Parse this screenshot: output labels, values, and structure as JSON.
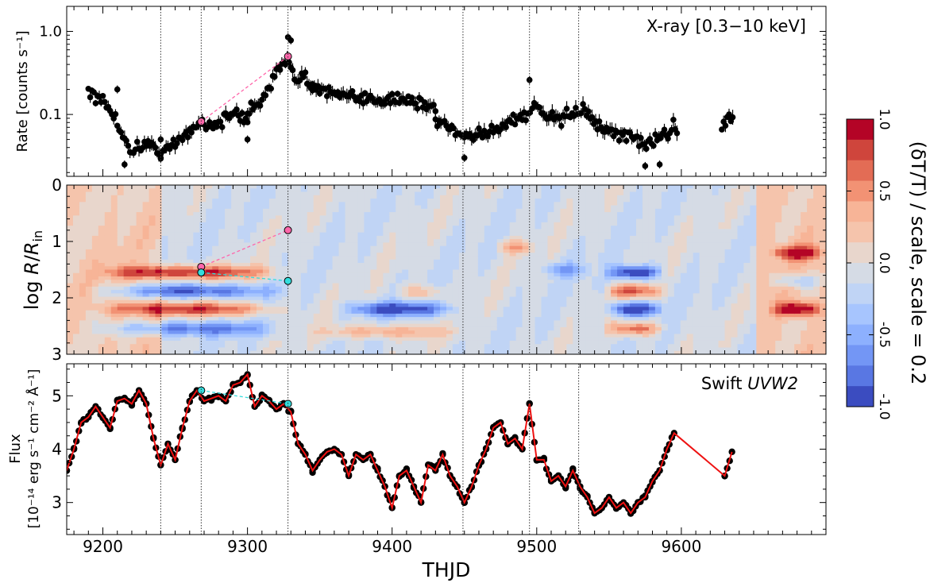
{
  "chart_data": [
    {
      "type": "scatter",
      "panel": "top",
      "annotation": "X-ray [0.3−10 keV]",
      "ylabel": "Rate [counts s⁻¹]",
      "yscale": "log",
      "ylim": [
        0.018,
        2.0
      ],
      "yticks": [
        {
          "v": 0.1,
          "label": "0.1"
        },
        {
          "v": 1.0,
          "label": "1.0"
        }
      ],
      "xlim": [
        9175,
        9700
      ],
      "marker_color": "#000000",
      "segments": [
        {
          "x0": 9190,
          "x1": 9240,
          "pts": [
            [
              9190,
              0.19
            ],
            [
              9200,
              0.13
            ],
            [
              9208,
              0.1
            ],
            [
              9214,
              0.05
            ],
            [
              9220,
              0.036
            ],
            [
              9230,
              0.045
            ],
            [
              9240,
              0.035
            ]
          ]
        },
        {
          "x0": 9240,
          "x1": 9300,
          "pts": [
            [
              9240,
              0.035
            ],
            [
              9250,
              0.042
            ],
            [
              9258,
              0.06
            ],
            [
              9268,
              0.082
            ],
            [
              9276,
              0.07
            ],
            [
              9284,
              0.09
            ],
            [
              9292,
              0.1
            ],
            [
              9300,
              0.085
            ]
          ]
        },
        {
          "x0": 9300,
          "x1": 9345,
          "pts": [
            [
              9300,
              0.1
            ],
            [
              9310,
              0.16
            ],
            [
              9318,
              0.25
            ],
            [
              9324,
              0.38
            ],
            [
              9328,
              0.52
            ],
            [
              9332,
              0.32
            ],
            [
              9340,
              0.26
            ],
            [
              9345,
              0.22
            ]
          ]
        },
        {
          "x0": 9345,
          "x1": 9430,
          "pts": [
            [
              9345,
              0.22
            ],
            [
              9360,
              0.17
            ],
            [
              9380,
              0.15
            ],
            [
              9400,
              0.16
            ],
            [
              9415,
              0.14
            ],
            [
              9430,
              0.12
            ]
          ]
        },
        {
          "x0": 9430,
          "x1": 9495,
          "pts": [
            [
              9430,
              0.085
            ],
            [
              9440,
              0.07
            ],
            [
              9450,
              0.055
            ],
            [
              9460,
              0.06
            ],
            [
              9470,
              0.065
            ],
            [
              9480,
              0.08
            ],
            [
              9490,
              0.095
            ],
            [
              9495,
              0.11
            ]
          ]
        },
        {
          "x0": 9497,
          "x1": 9598,
          "pts": [
            [
              9497,
              0.12
            ],
            [
              9505,
              0.1
            ],
            [
              9515,
              0.085
            ],
            [
              9525,
              0.1
            ],
            [
              9532,
              0.12
            ],
            [
              9540,
              0.08
            ],
            [
              9550,
              0.06
            ],
            [
              9560,
              0.055
            ],
            [
              9570,
              0.05
            ],
            [
              9580,
              0.045
            ],
            [
              9590,
              0.06
            ],
            [
              9598,
              0.075
            ]
          ]
        },
        {
          "x0": 9628,
          "x1": 9636,
          "pts": [
            [
              9628,
              0.075
            ],
            [
              9632,
              0.09
            ],
            [
              9636,
              0.105
            ]
          ]
        }
      ],
      "outliers": [
        [
          9328,
          0.85
        ],
        [
          9330,
          0.78
        ],
        [
          9495,
          0.26
        ],
        [
          9215,
          0.025
        ],
        [
          9240,
          0.03
        ],
        [
          9450,
          0.03
        ],
        [
          9575,
          0.024
        ],
        [
          9585,
          0.025
        ],
        [
          9210,
          0.2
        ],
        [
          9240,
          0.05
        ],
        [
          9300,
          0.05
        ]
      ],
      "highlight_points": [
        {
          "x": 9268,
          "y": 0.082
        },
        {
          "x": 9328,
          "y": 0.5
        }
      ],
      "highlight_color": "#ff66aa",
      "link_color": "#ff66aa"
    },
    {
      "type": "heatmap",
      "panel": "middle",
      "ylabel": "log R/Rin",
      "ylim": [
        3,
        0
      ],
      "yticks": [
        0,
        1,
        2,
        3
      ],
      "xlim": [
        9175,
        9700
      ],
      "colorbar": {
        "label": "(δT/T) / scale, scale = 0.2",
        "ticks": [
          "1.0",
          "0.5",
          "0.0",
          "-0.5",
          "-1.0"
        ],
        "colors": [
          "#b40426",
          "#cf453c",
          "#e36c55",
          "#f29274",
          "#f7b497",
          "#f5c4ac",
          "#e8d6cc",
          "#d5dbe5",
          "#c0d4f5",
          "#a7c5fe",
          "#8db0fe",
          "#7396f5",
          "#5977e3",
          "#3b4cc0"
        ]
      },
      "features": [
        {
          "x0": 9190,
          "x1": 9330,
          "r": 1.55,
          "amp": 1.0
        },
        {
          "x0": 9190,
          "x1": 9330,
          "r": 2.2,
          "amp": 0.9
        },
        {
          "x0": 9190,
          "x1": 9330,
          "r": 1.88,
          "amp": -0.8
        },
        {
          "x0": 9190,
          "x1": 9330,
          "r": 2.55,
          "amp": -0.7
        },
        {
          "x0": 9340,
          "x1": 9450,
          "r": 2.6,
          "amp": 0.5
        },
        {
          "x0": 9360,
          "x1": 9450,
          "r": 2.2,
          "amp": -0.9
        },
        {
          "x0": 9400,
          "x1": 9440,
          "r": 1.9,
          "amp": 0.4
        },
        {
          "x0": 9545,
          "x1": 9590,
          "r": 1.55,
          "amp": -1.0
        },
        {
          "x0": 9545,
          "x1": 9590,
          "r": 1.88,
          "amp": 0.8
        },
        {
          "x0": 9545,
          "x1": 9590,
          "r": 2.2,
          "amp": -1.0
        },
        {
          "x0": 9545,
          "x1": 9590,
          "r": 2.55,
          "amp": 0.8
        },
        {
          "x0": 9660,
          "x1": 9700,
          "r": 1.2,
          "amp": 0.9
        },
        {
          "x0": 9660,
          "x1": 9700,
          "r": 2.2,
          "amp": 1.0
        },
        {
          "x0": 9660,
          "x1": 9700,
          "r": 1.7,
          "amp": -0.5
        },
        {
          "x0": 9470,
          "x1": 9500,
          "r": 1.1,
          "amp": 0.5
        },
        {
          "x0": 9500,
          "x1": 9540,
          "r": 1.5,
          "amp": -0.4
        }
      ],
      "pink_points": [
        {
          "x": 9268,
          "y": 1.45
        },
        {
          "x": 9328,
          "y": 0.8
        }
      ],
      "cyan_points": [
        {
          "x": 9268,
          "y": 1.55
        },
        {
          "x": 9328,
          "y": 1.7
        }
      ],
      "pink_color": "#ff66aa",
      "cyan_color": "#33dddd"
    },
    {
      "type": "line",
      "panel": "bottom",
      "annotation_prefix": "Swift ",
      "annotation_italic": "UVW2",
      "ylabel_line1": "Flux",
      "ylabel_line2": "[10⁻¹⁴ erg s⁻¹ cm⁻² Å⁻¹]",
      "ylim": [
        2.4,
        5.6
      ],
      "yticks": [
        3,
        4,
        5
      ],
      "xlim": [
        9175,
        9700
      ],
      "xlabel": "THJD",
      "xticks": [
        9200,
        9300,
        9400,
        9500,
        9600
      ],
      "line_color": "#ee1111",
      "marker_color": "#000000",
      "x": [
        9175,
        9180,
        9185,
        9190,
        9195,
        9200,
        9205,
        9210,
        9215,
        9220,
        9225,
        9230,
        9235,
        9240,
        9245,
        9250,
        9255,
        9260,
        9265,
        9270,
        9275,
        9280,
        9285,
        9290,
        9295,
        9300,
        9305,
        9310,
        9315,
        9320,
        9325,
        9330,
        9335,
        9340,
        9345,
        9350,
        9355,
        9360,
        9365,
        9370,
        9375,
        9380,
        9385,
        9390,
        9395,
        9400,
        9405,
        9410,
        9415,
        9420,
        9425,
        9430,
        9435,
        9440,
        9445,
        9450,
        9455,
        9460,
        9465,
        9470,
        9475,
        9480,
        9485,
        9490,
        9495,
        9500,
        9505,
        9510,
        9515,
        9520,
        9525,
        9530,
        9535,
        9540,
        9545,
        9550,
        9555,
        9560,
        9565,
        9570,
        9575,
        9580,
        9585,
        9590,
        9595,
        9630,
        9635
      ],
      "y": [
        3.6,
        4.0,
        4.5,
        4.6,
        4.8,
        4.6,
        4.4,
        4.9,
        4.95,
        4.85,
        5.1,
        4.85,
        4.2,
        3.7,
        4.1,
        3.8,
        4.4,
        4.9,
        5.1,
        4.9,
        4.95,
        5.0,
        4.9,
        5.2,
        5.25,
        5.4,
        4.8,
        5.0,
        4.9,
        4.75,
        4.85,
        4.7,
        4.1,
        3.9,
        3.6,
        3.8,
        3.95,
        4.0,
        3.9,
        3.5,
        3.9,
        3.8,
        3.9,
        3.6,
        3.3,
        2.9,
        3.5,
        3.6,
        3.3,
        3.0,
        3.7,
        3.6,
        3.9,
        3.5,
        3.3,
        3.0,
        3.3,
        3.7,
        4.0,
        4.4,
        4.5,
        4.1,
        4.2,
        4.0,
        4.85,
        3.8,
        3.8,
        3.4,
        3.5,
        3.3,
        3.6,
        3.3,
        3.1,
        2.8,
        2.9,
        3.1,
        2.9,
        3.0,
        2.8,
        3.0,
        3.1,
        3.4,
        3.6,
        4.0,
        4.3,
        3.5,
        3.95
      ],
      "highlight_points": [
        {
          "x": 9268,
          "y": 5.1
        },
        {
          "x": 9328,
          "y": 4.85
        }
      ],
      "highlight_color": "#33dddd"
    }
  ],
  "vlines": [
    9240,
    9268,
    9328,
    9449,
    9495,
    9529
  ]
}
